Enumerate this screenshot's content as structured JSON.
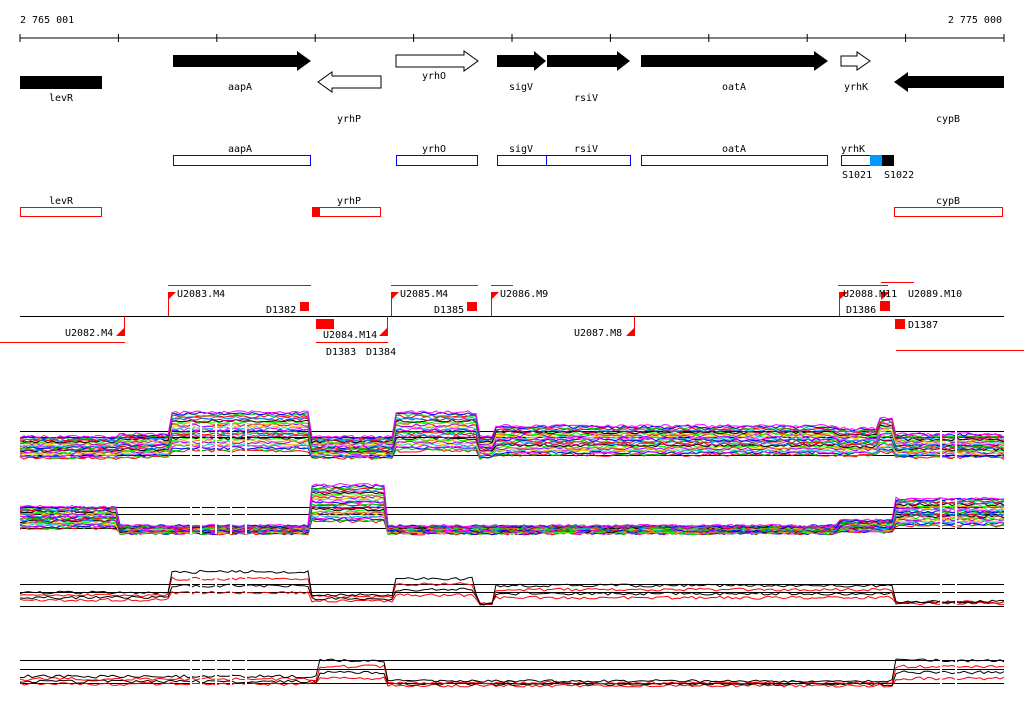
{
  "ruler": {
    "start_label": "2 765 001",
    "end_label": "2 775 000"
  },
  "genes": [
    {
      "name": "levR",
      "strand": "-",
      "style": "solid-box"
    },
    {
      "name": "aapA",
      "strand": "+",
      "style": "solid"
    },
    {
      "name": "yrhP",
      "strand": "-",
      "style": "hollow"
    },
    {
      "name": "yrhO",
      "strand": "+",
      "style": "hollow"
    },
    {
      "name": "sigV",
      "strand": "+",
      "style": "solid"
    },
    {
      "name": "rsiV",
      "strand": "+",
      "style": "solid"
    },
    {
      "name": "oatA",
      "strand": "+",
      "style": "solid"
    },
    {
      "name": "yrhK",
      "strand": "+",
      "style": "hollow"
    },
    {
      "name": "cypB",
      "strand": "-",
      "style": "solid"
    }
  ],
  "plus_features": [
    "aapA",
    "yrhO",
    "sigV",
    "rsiV",
    "oatA",
    "yrhK"
  ],
  "small_features": [
    "S1021",
    "S1022"
  ],
  "minus_features": [
    "levR",
    "yrhP",
    "cypB"
  ],
  "promoters_top": [
    "U2083.M4",
    "D1382",
    "U2085.M4",
    "D1385",
    "U2086.M9",
    "U2088.M11",
    "U2089.M10",
    "D1386"
  ],
  "promoters_bottom": [
    "U2082.M4",
    "D1383",
    "D1384",
    "U2084.M14",
    "U2087.M8",
    "D1387"
  ],
  "colors": {
    "plus": "#0000ff",
    "minus": "#ff0000",
    "small1": "#0099ff",
    "small2": "#000000"
  }
}
